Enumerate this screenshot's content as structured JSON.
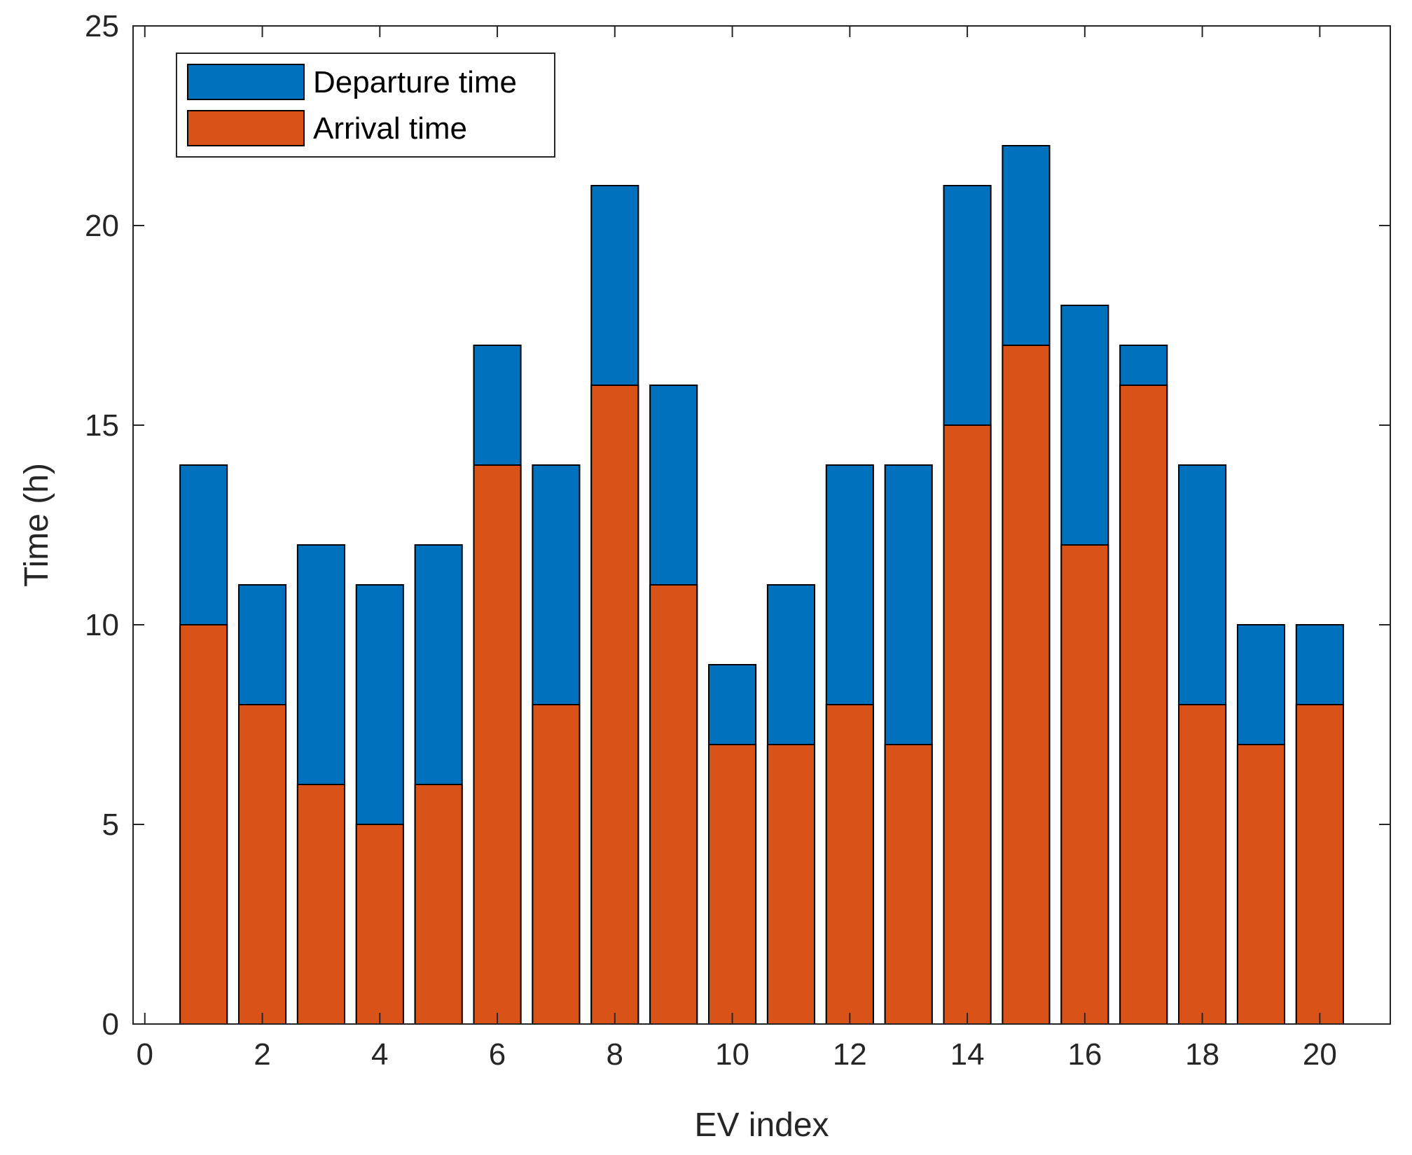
{
  "chart_data": {
    "type": "bar",
    "stacked": false,
    "overlay": true,
    "title": "",
    "xlabel": "EV index",
    "ylabel": "Time (h)",
    "xlim": [
      -0.2,
      21.2
    ],
    "ylim": [
      0,
      25
    ],
    "xticks": [
      0,
      2,
      4,
      6,
      8,
      10,
      12,
      14,
      16,
      18,
      20
    ],
    "yticks": [
      0,
      5,
      10,
      15,
      20,
      25
    ],
    "grid": false,
    "legend_position": "top-left",
    "categories": [
      1,
      2,
      3,
      4,
      5,
      6,
      7,
      8,
      9,
      10,
      11,
      12,
      13,
      14,
      15,
      16,
      17,
      18,
      19,
      20
    ],
    "series": [
      {
        "name": "Departure time",
        "color": "#0072BD",
        "values": [
          14,
          11,
          12,
          11,
          12,
          17,
          14,
          21,
          16,
          9,
          11,
          14,
          14,
          21,
          22,
          18,
          17,
          14,
          10,
          10
        ]
      },
      {
        "name": "Arrival time",
        "color": "#D95319",
        "values": [
          10,
          8,
          6,
          5,
          6,
          14,
          8,
          16,
          11,
          7,
          7,
          8,
          7,
          15,
          17,
          12,
          16,
          8,
          7,
          8
        ]
      }
    ]
  }
}
